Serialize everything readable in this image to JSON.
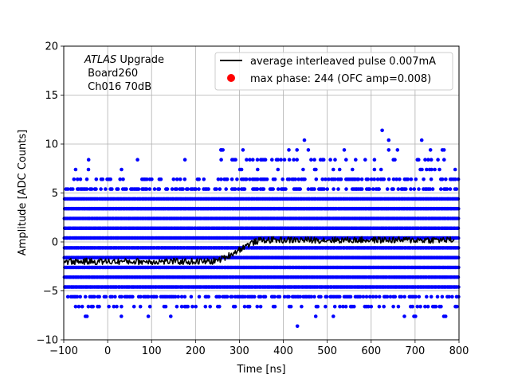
{
  "chart_data": {
    "type": "scatter",
    "xlabel": "Time [ns]",
    "ylabel": "Amplitude [ADC Counts]",
    "xlim": [
      -100,
      800
    ],
    "ylim": [
      -10,
      20
    ],
    "xticks": [
      -100,
      0,
      100,
      200,
      300,
      400,
      500,
      600,
      700,
      800
    ],
    "yticks": [
      -10,
      -5,
      0,
      5,
      10,
      15,
      20
    ],
    "xtick_labels": [
      "−100",
      "0",
      "100",
      "200",
      "300",
      "400",
      "500",
      "600",
      "700",
      "800"
    ],
    "ytick_labels": [
      "−10",
      "−5",
      "0",
      "5",
      "10",
      "15",
      "20"
    ],
    "grid": true,
    "legend_position": "top-right",
    "annotation": {
      "experiment": "ATLAS",
      "experiment_suffix": " Upgrade",
      "board": " Board260",
      "channel": " Ch016 70dB"
    },
    "series": [
      {
        "name": "average interleaved pulse 0.007mA",
        "kind": "line",
        "color": "#000000",
        "baseline": -2.0,
        "rise_start": 230,
        "rise_end": 360,
        "plateau": 0.2
      },
      {
        "name": "max phase: 244 (OFC amp=0.008)",
        "kind": "marker",
        "color": "#ff0000",
        "x": 244,
        "y": 0.008
      },
      {
        "name": "samples",
        "kind": "scatter",
        "color": "#0000ff",
        "levels": [
          -8.6,
          -7.6,
          -6.6,
          -5.6,
          -4.6,
          -3.6,
          -2.6,
          -1.6,
          -0.6,
          0.4,
          1.4,
          2.4,
          3.4,
          4.4,
          5.4,
          6.4,
          7.4,
          8.4,
          9.4,
          10.4,
          11.4
        ],
        "outliers": [
          {
            "x": 432,
            "y": -8.6
          },
          {
            "x": 448,
            "y": 10.4
          },
          {
            "x": 625,
            "y": 11.4
          },
          {
            "x": 640,
            "y": 10.4
          },
          {
            "x": 715,
            "y": 10.4
          },
          {
            "x": 258,
            "y": 9.4
          },
          {
            "x": 308,
            "y": 9.4
          },
          {
            "x": 660,
            "y": 9.4
          },
          {
            "x": 735,
            "y": 9.4
          },
          {
            "x": 640,
            "y": 9.4
          }
        ]
      }
    ]
  }
}
